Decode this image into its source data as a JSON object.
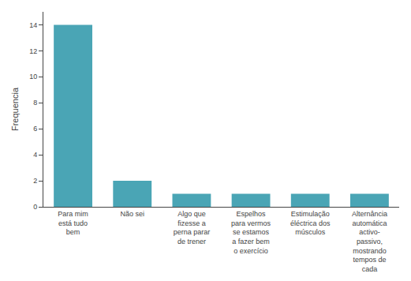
{
  "chart_data": {
    "type": "bar",
    "ylabel": "Frequencia",
    "categories": [
      "Para mim\nestá tudo\nbem",
      "Não sei",
      "Algo que\nfizesse a\nperna parar\nde trener",
      "Espelhos\npara vermos\nse estamos\na fazer bem\no exercício",
      "Estimulação\néléctrica dos\nmúsculos",
      "Alternância\nautomática\nactivo-\npassivo,\nmostrando\ntempos de\ncada"
    ],
    "values": [
      14,
      2,
      1,
      1,
      1,
      1
    ],
    "color": "#4aa5b5",
    "ylim": [
      0,
      15
    ],
    "yticks": [
      0,
      2,
      4,
      6,
      8,
      10,
      12,
      14
    ],
    "grid": false
  }
}
